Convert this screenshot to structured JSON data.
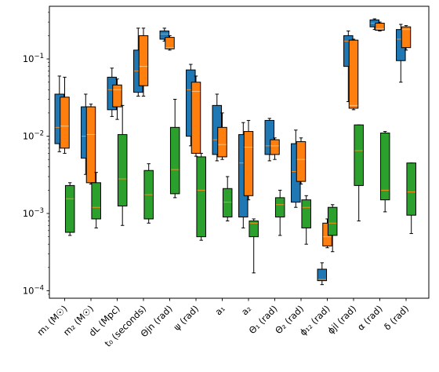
{
  "chart_data": {
    "type": "box",
    "y_scale": "log",
    "ylim": [
      8e-05,
      0.48
    ],
    "y_ticks": [
      {
        "value": 0.0001,
        "label": "10",
        "exp": "−4"
      },
      {
        "value": 0.001,
        "label": "10",
        "exp": "−3"
      },
      {
        "value": 0.01,
        "label": "10",
        "exp": "−2"
      },
      {
        "value": 0.1,
        "label": "10",
        "exp": "−1"
      }
    ],
    "categories": [
      {
        "label": "m₁ (M☉)"
      },
      {
        "label": "m₂ (M☉)"
      },
      {
        "label": "dL (Mpc)"
      },
      {
        "label": "t₀ (seconds)"
      },
      {
        "label": "Θjn (rad)"
      },
      {
        "label": "ψ (rad)"
      },
      {
        "label": "a₁"
      },
      {
        "label": "a₂"
      },
      {
        "label": "Θ₁ (rad)"
      },
      {
        "label": "Θ₂ (rad)"
      },
      {
        "label": "ϕ₁₂ (rad)"
      },
      {
        "label": "ϕjl (rad)"
      },
      {
        "label": "α (rad)"
      },
      {
        "label": "δ (rad)"
      }
    ],
    "series": [
      {
        "color": "#1f77b4",
        "offset": -0.2,
        "boxes": [
          {
            "wlo": 0.0063,
            "q1": 0.008,
            "med": 0.013,
            "q3": 0.035,
            "whi": 0.06
          },
          {
            "wlo": 0.0032,
            "q1": 0.0052,
            "med": 0.01,
            "q3": 0.024,
            "whi": 0.035
          },
          {
            "wlo": 0.018,
            "q1": 0.022,
            "med": 0.04,
            "q3": 0.058,
            "whi": 0.076
          },
          {
            "wlo": 0.033,
            "q1": 0.037,
            "med": 0.07,
            "q3": 0.13,
            "whi": 0.25
          },
          {
            "wlo": 0.17,
            "q1": 0.18,
            "med": 0.21,
            "q3": 0.23,
            "whi": 0.25
          },
          {
            "wlo": 0.0075,
            "q1": 0.01,
            "med": 0.04,
            "q3": 0.072,
            "whi": 0.085
          },
          {
            "wlo": 0.0048,
            "q1": 0.0058,
            "med": 0.009,
            "q3": 0.025,
            "whi": 0.035
          },
          {
            "wlo": 0.00065,
            "q1": 0.0009,
            "med": 0.0045,
            "q3": 0.0105,
            "whi": 0.015
          },
          {
            "wlo": 0.0048,
            "q1": 0.0058,
            "med": 0.0075,
            "q3": 0.016,
            "whi": 0.017
          },
          {
            "wlo": 0.0012,
            "q1": 0.0014,
            "med": 0.0035,
            "q3": 0.008,
            "whi": 0.012
          },
          {
            "wlo": 0.00012,
            "q1": 0.000135,
            "med": 0.00014,
            "q3": 0.00019,
            "whi": 0.00023
          },
          {
            "wlo": 0.028,
            "q1": 0.08,
            "med": 0.17,
            "q3": 0.2,
            "whi": 0.23
          },
          {
            "wlo": 0.24,
            "q1": 0.26,
            "med": 0.29,
            "q3": 0.32,
            "whi": 0.33
          },
          {
            "wlo": 0.05,
            "q1": 0.095,
            "med": 0.18,
            "q3": 0.24,
            "whi": 0.28
          }
        ]
      },
      {
        "color": "#ff7f0e",
        "offset": 0.0,
        "boxes": [
          {
            "wlo": 0.006,
            "q1": 0.007,
            "med": 0.0135,
            "q3": 0.032,
            "whi": 0.058
          },
          {
            "wlo": 0.0024,
            "q1": 0.0025,
            "med": 0.0105,
            "q3": 0.024,
            "whi": 0.026
          },
          {
            "wlo": 0.0165,
            "q1": 0.024,
            "med": 0.04,
            "q3": 0.046,
            "whi": 0.055
          },
          {
            "wlo": 0.033,
            "q1": 0.045,
            "med": 0.08,
            "q3": 0.2,
            "whi": 0.25
          },
          {
            "wlo": 0.13,
            "q1": 0.135,
            "med": 0.14,
            "q3": 0.19,
            "whi": 0.2
          },
          {
            "wlo": 0.0055,
            "q1": 0.006,
            "med": 0.038,
            "q3": 0.05,
            "whi": 0.06
          },
          {
            "wlo": 0.005,
            "q1": 0.0054,
            "med": 0.0078,
            "q3": 0.013,
            "whi": 0.02
          },
          {
            "wlo": 0.0015,
            "q1": 0.0017,
            "med": 0.0072,
            "q3": 0.0115,
            "whi": 0.016
          },
          {
            "wlo": 0.005,
            "q1": 0.0058,
            "med": 0.0075,
            "q3": 0.009,
            "whi": 0.0095
          },
          {
            "wlo": 0.0024,
            "q1": 0.0026,
            "med": 0.005,
            "q3": 0.0085,
            "whi": 0.0095
          },
          {
            "wlo": 0.00036,
            "q1": 0.00038,
            "med": 0.0005,
            "q3": 0.00075,
            "whi": 0.00085
          },
          {
            "wlo": 0.022,
            "q1": 0.023,
            "med": 0.025,
            "q3": 0.175,
            "whi": 0.18
          },
          {
            "wlo": 0.23,
            "q1": 0.235,
            "med": 0.245,
            "q3": 0.29,
            "whi": 0.3
          },
          {
            "wlo": 0.13,
            "q1": 0.14,
            "med": 0.24,
            "q3": 0.26,
            "whi": 0.27
          }
        ]
      },
      {
        "color": "#2ca02c",
        "offset": 0.2,
        "boxes": [
          {
            "wlo": 0.00052,
            "q1": 0.00057,
            "med": 0.00155,
            "q3": 0.0023,
            "whi": 0.0025
          },
          {
            "wlo": 0.00065,
            "q1": 0.00085,
            "med": 0.0012,
            "q3": 0.0025,
            "whi": 0.0034
          },
          {
            "wlo": 0.0007,
            "q1": 0.00125,
            "med": 0.0028,
            "q3": 0.0105,
            "whi": 0.025
          },
          {
            "wlo": 0.00075,
            "q1": 0.00085,
            "med": 0.00175,
            "q3": 0.0036,
            "whi": 0.0044
          },
          {
            "wlo": 0.0016,
            "q1": 0.0018,
            "med": 0.0037,
            "q3": 0.013,
            "whi": 0.03
          },
          {
            "wlo": 0.00045,
            "q1": 0.0005,
            "med": 0.002,
            "q3": 0.0054,
            "whi": 0.006
          },
          {
            "wlo": 0.0008,
            "q1": 0.0009,
            "med": 0.0014,
            "q3": 0.0021,
            "whi": 0.003
          },
          {
            "wlo": 0.00017,
            "q1": 0.0005,
            "med": 0.00075,
            "q3": 0.0008,
            "whi": 0.00085
          },
          {
            "wlo": 0.00052,
            "q1": 0.0009,
            "med": 0.0013,
            "q3": 0.0016,
            "whi": 0.002
          },
          {
            "wlo": 0.0004,
            "q1": 0.00065,
            "med": 0.0012,
            "q3": 0.0015,
            "whi": 0.0017
          },
          {
            "wlo": 0.00032,
            "q1": 0.00052,
            "med": 0.00075,
            "q3": 0.0012,
            "whi": 0.0013
          },
          {
            "wlo": 0.0008,
            "q1": 0.0023,
            "med": 0.0065,
            "q3": 0.014,
            "whi": 0.014
          },
          {
            "wlo": 0.00105,
            "q1": 0.0015,
            "med": 0.002,
            "q3": 0.011,
            "whi": 0.0115
          },
          {
            "wlo": 0.00055,
            "q1": 0.00095,
            "med": 0.0019,
            "q3": 0.0045,
            "whi": 0.0045
          }
        ]
      }
    ]
  }
}
